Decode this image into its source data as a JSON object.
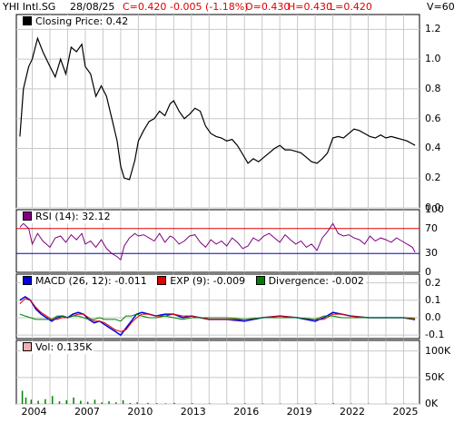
{
  "header": {
    "symbol": "YHI Intl.SG",
    "date": "28/08/25",
    "close": "C=0.420",
    "change": "-0.005 (-1.18%)",
    "open": "O=0.430",
    "high": "H=0.430",
    "low": "L=0.420",
    "volume": "V=60",
    "colors": {
      "quote": "#e00000",
      "text": "#000000"
    }
  },
  "x_ticks": [
    "2004",
    "2007",
    "2010",
    "2013",
    "2016",
    "2019",
    "2022",
    "2025"
  ],
  "chart_data": [
    {
      "type": "line",
      "legend": "Closing Price: 0.42",
      "x": [
        2003.3,
        2003.5,
        2003.8,
        2004.0,
        2004.3,
        2004.6,
        2005.0,
        2005.3,
        2005.6,
        2005.9,
        2006.2,
        2006.5,
        2006.8,
        2007.0,
        2007.3,
        2007.6,
        2007.9,
        2008.2,
        2008.5,
        2008.8,
        2009.0,
        2009.2,
        2009.5,
        2009.8,
        2010.0,
        2010.3,
        2010.6,
        2010.9,
        2011.2,
        2011.5,
        2011.8,
        2012.0,
        2012.3,
        2012.6,
        2012.9,
        2013.2,
        2013.5,
        2013.8,
        2014.1,
        2014.4,
        2014.7,
        2015.0,
        2015.3,
        2015.6,
        2015.9,
        2016.2,
        2016.5,
        2016.8,
        2017.1,
        2017.4,
        2017.7,
        2018.0,
        2018.3,
        2018.6,
        2018.9,
        2019.2,
        2019.5,
        2019.8,
        2020.1,
        2020.4,
        2020.7,
        2021.0,
        2021.3,
        2021.6,
        2021.9,
        2022.2,
        2022.5,
        2022.8,
        2023.1,
        2023.4,
        2023.7,
        2024.0,
        2024.3,
        2024.6,
        2024.9,
        2025.2,
        2025.5,
        2025.65
      ],
      "y": [
        0.48,
        0.8,
        0.95,
        1.0,
        1.14,
        1.05,
        0.95,
        0.88,
        1.0,
        0.9,
        1.08,
        1.05,
        1.1,
        0.95,
        0.9,
        0.75,
        0.82,
        0.75,
        0.6,
        0.45,
        0.28,
        0.2,
        0.19,
        0.32,
        0.45,
        0.52,
        0.58,
        0.6,
        0.65,
        0.62,
        0.7,
        0.72,
        0.65,
        0.6,
        0.63,
        0.67,
        0.65,
        0.55,
        0.5,
        0.48,
        0.47,
        0.45,
        0.46,
        0.42,
        0.36,
        0.3,
        0.33,
        0.31,
        0.34,
        0.37,
        0.4,
        0.42,
        0.39,
        0.39,
        0.38,
        0.37,
        0.34,
        0.31,
        0.3,
        0.33,
        0.37,
        0.47,
        0.48,
        0.47,
        0.5,
        0.53,
        0.52,
        0.5,
        0.48,
        0.47,
        0.49,
        0.47,
        0.48,
        0.47,
        0.46,
        0.45,
        0.43,
        0.42
      ],
      "ylim": [
        0,
        1.3
      ],
      "yticks": [
        "0.0",
        "0.2",
        "0.4",
        "0.6",
        "0.8",
        "1.0",
        "1.2"
      ],
      "color": "#000000"
    },
    {
      "type": "line",
      "legend": "RSI (14): 32.12",
      "x": [
        2003.3,
        2003.5,
        2003.8,
        2004.0,
        2004.3,
        2004.6,
        2005.0,
        2005.3,
        2005.6,
        2005.9,
        2006.2,
        2006.5,
        2006.8,
        2007.0,
        2007.3,
        2007.6,
        2007.9,
        2008.2,
        2008.5,
        2008.8,
        2009.0,
        2009.2,
        2009.5,
        2009.8,
        2010.0,
        2010.3,
        2010.6,
        2010.9,
        2011.2,
        2011.5,
        2011.8,
        2012.0,
        2012.3,
        2012.6,
        2012.9,
        2013.2,
        2013.5,
        2013.8,
        2014.1,
        2014.4,
        2014.7,
        2015.0,
        2015.3,
        2015.6,
        2015.9,
        2016.2,
        2016.5,
        2016.8,
        2017.1,
        2017.4,
        2017.7,
        2018.0,
        2018.3,
        2018.6,
        2018.9,
        2019.2,
        2019.5,
        2019.8,
        2020.1,
        2020.4,
        2020.7,
        2021.0,
        2021.3,
        2021.6,
        2021.9,
        2022.2,
        2022.5,
        2022.8,
        2023.1,
        2023.4,
        2023.7,
        2024.0,
        2024.3,
        2024.6,
        2024.9,
        2025.2,
        2025.5,
        2025.65
      ],
      "y": [
        72,
        78,
        70,
        45,
        62,
        50,
        40,
        55,
        58,
        48,
        60,
        52,
        62,
        45,
        50,
        40,
        52,
        38,
        30,
        25,
        20,
        42,
        55,
        62,
        58,
        60,
        55,
        50,
        62,
        48,
        58,
        55,
        45,
        50,
        58,
        60,
        48,
        40,
        52,
        45,
        50,
        42,
        55,
        48,
        38,
        42,
        55,
        50,
        58,
        62,
        55,
        48,
        60,
        52,
        45,
        50,
        40,
        45,
        35,
        55,
        65,
        78,
        62,
        58,
        60,
        55,
        52,
        45,
        58,
        50,
        55,
        52,
        48,
        55,
        50,
        45,
        40,
        32
      ],
      "ylim": [
        0,
        100
      ],
      "yticks": [
        "100",
        "70",
        "30",
        "0"
      ],
      "levels": [
        70,
        30
      ],
      "color": "#800080",
      "level_colors": {
        "upper": "#e00000",
        "lower": "#0000c8"
      }
    },
    {
      "type": "line",
      "legends": [
        "MACD (26, 12): -0.011",
        "EXP (9): -0.009",
        "Divergence: -0.002"
      ],
      "x": [
        2003.3,
        2003.6,
        2003.9,
        2004.2,
        2004.5,
        2004.8,
        2005.1,
        2005.4,
        2005.7,
        2006.0,
        2006.3,
        2006.6,
        2006.9,
        2007.2,
        2007.5,
        2007.8,
        2008.1,
        2008.4,
        2008.7,
        2009.0,
        2009.3,
        2009.6,
        2009.9,
        2010.2,
        2010.6,
        2011.0,
        2011.5,
        2012.0,
        2012.5,
        2013.0,
        2013.5,
        2014.0,
        2015.0,
        2016.0,
        2017.0,
        2018.0,
        2019.0,
        2020.0,
        2020.5,
        2021.0,
        2021.5,
        2022.0,
        2023.0,
        2024.0,
        2025.0,
        2025.65
      ],
      "series": [
        {
          "name": "MACD (26, 12)",
          "color": "#0000e0",
          "values": [
            0.1,
            0.12,
            0.1,
            0.05,
            0.02,
            0.0,
            -0.02,
            0.0,
            0.01,
            0.0,
            0.02,
            0.03,
            0.02,
            -0.01,
            -0.03,
            -0.02,
            -0.04,
            -0.06,
            -0.08,
            -0.1,
            -0.06,
            -0.02,
            0.02,
            0.03,
            0.02,
            0.01,
            0.02,
            0.02,
            0.0,
            0.01,
            0.0,
            -0.01,
            -0.01,
            -0.02,
            0.0,
            0.01,
            0.0,
            -0.02,
            0.0,
            0.03,
            0.02,
            0.01,
            0.0,
            0.0,
            0.0,
            -0.011
          ]
        },
        {
          "name": "EXP (9)",
          "color": "#e00000",
          "values": [
            0.08,
            0.11,
            0.1,
            0.06,
            0.03,
            0.01,
            -0.01,
            -0.01,
            0.0,
            0.0,
            0.01,
            0.02,
            0.02,
            0.0,
            -0.02,
            -0.02,
            -0.03,
            -0.05,
            -0.07,
            -0.08,
            -0.07,
            -0.03,
            0.0,
            0.02,
            0.02,
            0.01,
            0.01,
            0.02,
            0.01,
            0.01,
            0.0,
            -0.01,
            -0.01,
            -0.01,
            0.0,
            0.01,
            0.0,
            -0.01,
            -0.01,
            0.02,
            0.02,
            0.01,
            0.0,
            0.0,
            0.0,
            -0.009
          ]
        },
        {
          "name": "Divergence",
          "color": "#008000",
          "values": [
            0.02,
            0.01,
            0.0,
            -0.01,
            -0.01,
            -0.01,
            -0.01,
            0.01,
            0.01,
            0.0,
            0.01,
            0.01,
            0.0,
            -0.01,
            -0.01,
            0.0,
            -0.01,
            -0.01,
            -0.01,
            -0.02,
            0.01,
            0.01,
            0.02,
            0.01,
            0.0,
            0.0,
            0.01,
            0.0,
            -0.01,
            0.0,
            0.0,
            0.0,
            0.0,
            -0.01,
            0.0,
            0.0,
            0.0,
            -0.01,
            0.01,
            0.01,
            0.0,
            0.0,
            0.0,
            0.0,
            0.0,
            -0.002
          ]
        }
      ],
      "ylim": [
        -0.12,
        0.25
      ],
      "yticks": [
        "0.2",
        "0.1",
        "0.0",
        "-0.1"
      ],
      "swatch_colors": [
        "#0000e0",
        "#e00000",
        "#008000"
      ]
    },
    {
      "type": "bar",
      "legend": "Vol: 0.135K",
      "x": [
        2003.4,
        2003.6,
        2003.9,
        2004.3,
        2004.7,
        2005.1,
        2005.5,
        2005.9,
        2006.3,
        2006.7,
        2007.1,
        2007.5,
        2007.9,
        2008.3,
        2008.7,
        2009.1,
        2009.5,
        2009.9,
        2010.5,
        2011.0,
        2011.5,
        2012.0,
        2013.0,
        2014.0,
        2015.0,
        2016.0,
        2017.0,
        2018.0,
        2019.0,
        2020.0,
        2021.0,
        2022.0,
        2023.0,
        2024.0,
        2025.0,
        2025.5
      ],
      "values": [
        25000,
        12000,
        8000,
        6000,
        9000,
        15000,
        5000,
        7000,
        12000,
        6000,
        4000,
        8000,
        3000,
        5000,
        3000,
        7000,
        2000,
        3000,
        2000,
        1500,
        1000,
        2000,
        1500,
        1000,
        800,
        1200,
        900,
        700,
        600,
        1000,
        1500,
        800,
        600,
        500,
        400,
        300
      ],
      "ylim": [
        0,
        120000
      ],
      "yticks": [
        "100K",
        "50K",
        "0K"
      ],
      "color": "#008000"
    }
  ]
}
